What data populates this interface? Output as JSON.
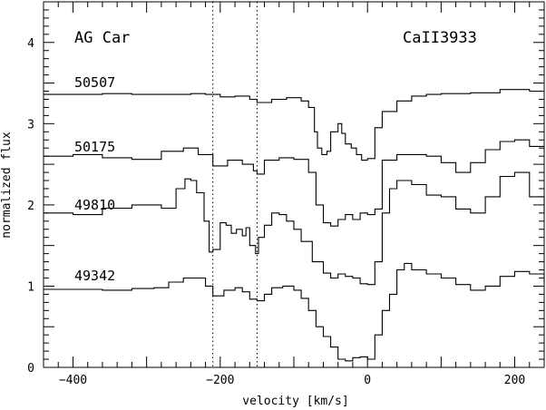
{
  "chart_data": {
    "type": "line",
    "title": "",
    "object_label": "AG Car",
    "line_label": "CaII3933",
    "xlabel": "velocity [km/s]",
    "ylabel": "normalized flux",
    "xlim": [
      -440,
      240
    ],
    "ylim": [
      0,
      4.5
    ],
    "xticks": [
      -400,
      -200,
      0,
      200
    ],
    "yticks": [
      0,
      1,
      2,
      3,
      4
    ],
    "grid": false,
    "legend": "none",
    "reference_lines_x": [
      -210,
      -150
    ],
    "color": "#000000",
    "series": [
      {
        "name": "50507",
        "x": [
          -440,
          -400,
          -360,
          -320,
          -280,
          -240,
          -220,
          -200,
          -180,
          -160,
          -150,
          -130,
          -110,
          -90,
          -80,
          -72,
          -68,
          -62,
          -55,
          -50,
          -40,
          -35,
          -30,
          -22,
          -15,
          -8,
          0,
          10,
          20,
          40,
          60,
          80,
          100,
          140,
          180,
          220,
          240
        ],
        "y": [
          3.36,
          3.36,
          3.37,
          3.36,
          3.36,
          3.37,
          3.36,
          3.33,
          3.34,
          3.3,
          3.26,
          3.3,
          3.32,
          3.28,
          3.2,
          2.9,
          2.7,
          2.62,
          2.66,
          2.9,
          3.0,
          2.88,
          2.75,
          2.7,
          2.62,
          2.55,
          2.57,
          2.95,
          3.15,
          3.28,
          3.34,
          3.36,
          3.37,
          3.38,
          3.42,
          3.4,
          3.38
        ]
      },
      {
        "name": "50175",
        "x": [
          -440,
          -400,
          -360,
          -320,
          -280,
          -250,
          -230,
          -210,
          -190,
          -170,
          -155,
          -150,
          -140,
          -120,
          -100,
          -80,
          -70,
          -60,
          -50,
          -40,
          -30,
          -20,
          -10,
          0,
          10,
          20,
          40,
          60,
          80,
          100,
          120,
          140,
          160,
          180,
          200,
          220,
          240
        ],
        "y": [
          2.6,
          2.62,
          2.58,
          2.56,
          2.66,
          2.7,
          2.62,
          2.48,
          2.55,
          2.5,
          2.42,
          2.38,
          2.55,
          2.58,
          2.56,
          2.4,
          2.0,
          1.78,
          1.74,
          1.82,
          1.88,
          1.82,
          1.9,
          1.88,
          1.95,
          2.55,
          2.62,
          2.62,
          2.6,
          2.52,
          2.4,
          2.52,
          2.68,
          2.78,
          2.8,
          2.72,
          2.66
        ]
      },
      {
        "name": "49810",
        "x": [
          -440,
          -400,
          -360,
          -320,
          -300,
          -280,
          -260,
          -248,
          -240,
          -232,
          -222,
          -215,
          -210,
          -200,
          -192,
          -185,
          -178,
          -170,
          -165,
          -160,
          -152,
          -148,
          -140,
          -130,
          -120,
          -110,
          -100,
          -90,
          -75,
          -60,
          -50,
          -40,
          -30,
          -20,
          -10,
          0,
          10,
          20,
          30,
          40,
          60,
          80,
          100,
          120,
          140,
          160,
          180,
          200,
          220,
          240
        ],
        "y": [
          1.9,
          1.88,
          1.96,
          2.0,
          2.0,
          1.96,
          2.2,
          2.32,
          2.3,
          2.15,
          1.8,
          1.42,
          1.45,
          1.78,
          1.75,
          1.65,
          1.7,
          1.62,
          1.72,
          1.5,
          1.4,
          1.6,
          1.75,
          1.9,
          1.88,
          1.8,
          1.7,
          1.55,
          1.3,
          1.16,
          1.1,
          1.15,
          1.12,
          1.1,
          1.03,
          1.02,
          1.3,
          1.9,
          2.2,
          2.3,
          2.25,
          2.12,
          2.1,
          1.95,
          1.9,
          2.1,
          2.35,
          2.4,
          2.1,
          1.9
        ]
      },
      {
        "name": "49342",
        "x": [
          -440,
          -400,
          -360,
          -320,
          -290,
          -270,
          -250,
          -235,
          -220,
          -210,
          -195,
          -180,
          -170,
          -160,
          -150,
          -140,
          -130,
          -115,
          -100,
          -90,
          -80,
          -70,
          -60,
          -50,
          -40,
          -30,
          -20,
          -10,
          0,
          10,
          20,
          30,
          40,
          50,
          60,
          80,
          100,
          120,
          140,
          160,
          180,
          200,
          220,
          240
        ],
        "y": [
          0.96,
          0.96,
          0.95,
          0.97,
          0.98,
          1.05,
          1.1,
          1.1,
          1.0,
          0.88,
          0.95,
          0.98,
          0.93,
          0.84,
          0.82,
          0.9,
          0.98,
          1.0,
          0.95,
          0.85,
          0.7,
          0.5,
          0.38,
          0.25,
          0.1,
          0.08,
          0.12,
          0.13,
          0.1,
          0.4,
          0.7,
          0.9,
          1.2,
          1.28,
          1.2,
          1.15,
          1.1,
          1.02,
          0.95,
          1.0,
          1.12,
          1.18,
          1.15,
          1.05
        ]
      }
    ]
  }
}
